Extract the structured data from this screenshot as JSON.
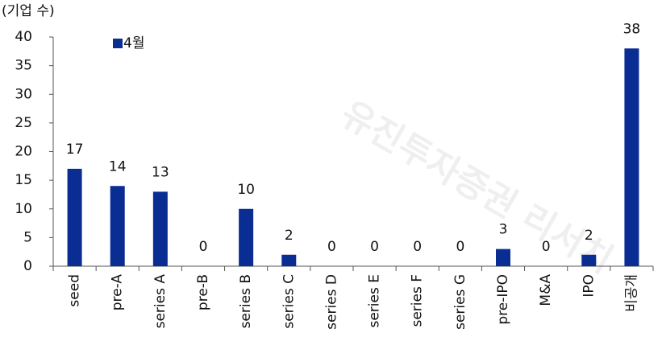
{
  "chart_data": {
    "type": "bar",
    "y_label": "(기업 수)",
    "watermark": "유진투자증권 리서치",
    "categories": [
      "seed",
      "pre-A",
      "series A",
      "pre-B",
      "series B",
      "series C",
      "series D",
      "series E",
      "series F",
      "series G",
      "pre-IPO",
      "M&A",
      "IPO",
      "비공개"
    ],
    "series": [
      {
        "name": "4월",
        "color": "#0a2d94",
        "values": [
          17,
          14,
          13,
          0,
          10,
          2,
          0,
          0,
          0,
          0,
          3,
          0,
          2,
          38
        ]
      }
    ],
    "ylim": [
      0,
      40
    ],
    "yticks": [
      0,
      5,
      10,
      15,
      20,
      25,
      30,
      35,
      40
    ],
    "grid": false,
    "legend": "top-left"
  }
}
